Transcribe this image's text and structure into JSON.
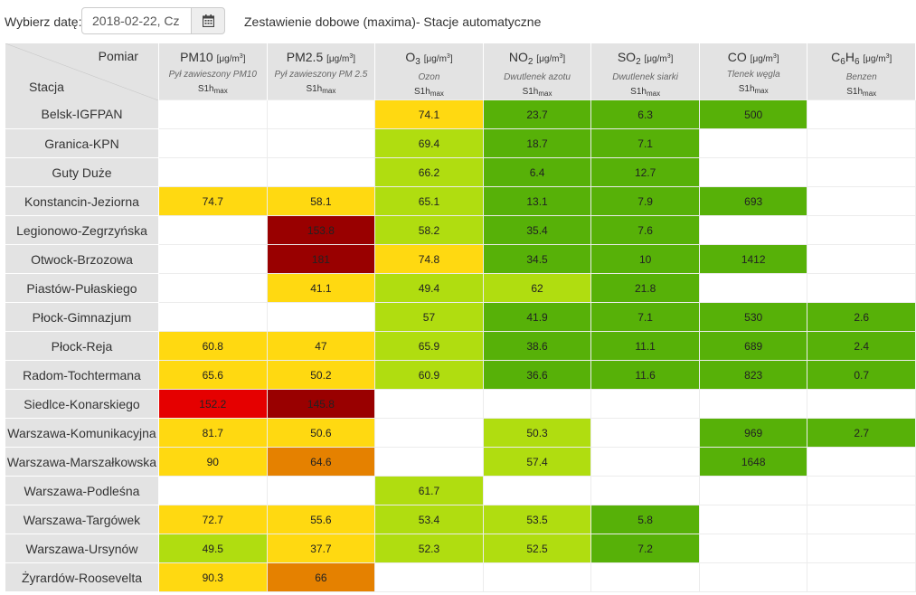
{
  "toolbar": {
    "date_label": "Wybierz datę:",
    "date_value": "2018-02-22, Cz",
    "calendar_icon": "calendar-icon",
    "title": "Zestawienie dobowe (maxima)- Stacje automatyczne"
  },
  "header": {
    "pomiar_label": "Pomiar",
    "stacja_label": "Stacja",
    "columns": [
      {
        "main": "PM10",
        "main_sub": "",
        "main_tail": "",
        "unit_prefix": "[μg/m",
        "unit_sup": "3",
        "unit_suffix": "]",
        "desc": "Pył zawieszony PM10",
        "param": "S1h",
        "param_sub": "max"
      },
      {
        "main": "PM2.5",
        "main_sub": "",
        "main_tail": "",
        "unit_prefix": "[μg/m",
        "unit_sup": "3",
        "unit_suffix": "]",
        "desc": "Pył zawieszony PM 2.5",
        "param": "S1h",
        "param_sub": "max"
      },
      {
        "main": "O",
        "main_sub": "3",
        "main_tail": "",
        "unit_prefix": "[μg/m",
        "unit_sup": "3",
        "unit_suffix": "]",
        "desc": "Ozon",
        "param": "S1h",
        "param_sub": "max"
      },
      {
        "main": "NO",
        "main_sub": "2",
        "main_tail": "",
        "unit_prefix": "[μg/m",
        "unit_sup": "3",
        "unit_suffix": "]",
        "desc": "Dwutlenek azotu",
        "param": "S1h",
        "param_sub": "max"
      },
      {
        "main": "SO",
        "main_sub": "2",
        "main_tail": "",
        "unit_prefix": "[μg/m",
        "unit_sup": "3",
        "unit_suffix": "]",
        "desc": "Dwutlenek siarki",
        "param": "S1h",
        "param_sub": "max"
      },
      {
        "main": "CO",
        "main_sub": "",
        "main_tail": "",
        "unit_prefix": "[μg/m",
        "unit_sup": "3",
        "unit_suffix": "]",
        "desc": "Tlenek węgla",
        "param": "S1h",
        "param_sub": "max"
      },
      {
        "main": "C",
        "main_sub": "6",
        "main_tail": "H",
        "main_tail_sub": "6",
        "unit_prefix": "[μg/m",
        "unit_sup": "3",
        "unit_suffix": "]",
        "desc": "Benzen",
        "param": "S1h",
        "param_sub": "max"
      }
    ]
  },
  "colors": {
    "very_good": "#57b108",
    "good": "#b0dd10",
    "moderate": "#ffd911",
    "sufficient": "#e58100",
    "bad": "#e50000",
    "very_bad": "#990000",
    "header_bg": "#e3e3e3"
  },
  "rows": [
    {
      "station": "Belsk-IGFPAN",
      "cells": [
        {
          "v": "",
          "c": "empty"
        },
        {
          "v": "",
          "c": "empty"
        },
        {
          "v": "74.1",
          "c": "moderate"
        },
        {
          "v": "23.7",
          "c": "very_good"
        },
        {
          "v": "6.3",
          "c": "very_good"
        },
        {
          "v": "500",
          "c": "very_good"
        },
        {
          "v": "",
          "c": "empty"
        }
      ]
    },
    {
      "station": "Granica-KPN",
      "cells": [
        {
          "v": "",
          "c": "empty"
        },
        {
          "v": "",
          "c": "empty"
        },
        {
          "v": "69.4",
          "c": "good"
        },
        {
          "v": "18.7",
          "c": "very_good"
        },
        {
          "v": "7.1",
          "c": "very_good"
        },
        {
          "v": "",
          "c": "empty"
        },
        {
          "v": "",
          "c": "empty"
        }
      ]
    },
    {
      "station": "Guty Duże",
      "cells": [
        {
          "v": "",
          "c": "empty"
        },
        {
          "v": "",
          "c": "empty"
        },
        {
          "v": "66.2",
          "c": "good"
        },
        {
          "v": "6.4",
          "c": "very_good"
        },
        {
          "v": "12.7",
          "c": "very_good"
        },
        {
          "v": "",
          "c": "empty"
        },
        {
          "v": "",
          "c": "empty"
        }
      ]
    },
    {
      "station": "Konstancin-Jeziorna",
      "cells": [
        {
          "v": "74.7",
          "c": "moderate"
        },
        {
          "v": "58.1",
          "c": "moderate"
        },
        {
          "v": "65.1",
          "c": "good"
        },
        {
          "v": "13.1",
          "c": "very_good"
        },
        {
          "v": "7.9",
          "c": "very_good"
        },
        {
          "v": "693",
          "c": "very_good"
        },
        {
          "v": "",
          "c": "empty"
        }
      ]
    },
    {
      "station": "Legionowo-Zegrzyńska",
      "cells": [
        {
          "v": "",
          "c": "empty"
        },
        {
          "v": "153.8",
          "c": "very_bad"
        },
        {
          "v": "58.2",
          "c": "good"
        },
        {
          "v": "35.4",
          "c": "very_good"
        },
        {
          "v": "7.6",
          "c": "very_good"
        },
        {
          "v": "",
          "c": "empty"
        },
        {
          "v": "",
          "c": "empty"
        }
      ]
    },
    {
      "station": "Otwock-Brzozowa",
      "cells": [
        {
          "v": "",
          "c": "empty"
        },
        {
          "v": "181",
          "c": "very_bad"
        },
        {
          "v": "74.8",
          "c": "moderate"
        },
        {
          "v": "34.5",
          "c": "very_good"
        },
        {
          "v": "10",
          "c": "very_good"
        },
        {
          "v": "1412",
          "c": "very_good"
        },
        {
          "v": "",
          "c": "empty"
        }
      ]
    },
    {
      "station": "Piastów-Pułaskiego",
      "cells": [
        {
          "v": "",
          "c": "empty"
        },
        {
          "v": "41.1",
          "c": "moderate"
        },
        {
          "v": "49.4",
          "c": "good"
        },
        {
          "v": "62",
          "c": "good"
        },
        {
          "v": "21.8",
          "c": "very_good"
        },
        {
          "v": "",
          "c": "empty"
        },
        {
          "v": "",
          "c": "empty"
        }
      ]
    },
    {
      "station": "Płock-Gimnazjum",
      "cells": [
        {
          "v": "",
          "c": "empty"
        },
        {
          "v": "",
          "c": "empty"
        },
        {
          "v": "57",
          "c": "good"
        },
        {
          "v": "41.9",
          "c": "very_good"
        },
        {
          "v": "7.1",
          "c": "very_good"
        },
        {
          "v": "530",
          "c": "very_good"
        },
        {
          "v": "2.6",
          "c": "very_good"
        }
      ]
    },
    {
      "station": "Płock-Reja",
      "cells": [
        {
          "v": "60.8",
          "c": "moderate"
        },
        {
          "v": "47",
          "c": "moderate"
        },
        {
          "v": "65.9",
          "c": "good"
        },
        {
          "v": "38.6",
          "c": "very_good"
        },
        {
          "v": "11.1",
          "c": "very_good"
        },
        {
          "v": "689",
          "c": "very_good"
        },
        {
          "v": "2.4",
          "c": "very_good"
        }
      ]
    },
    {
      "station": "Radom-Tochtermana",
      "cells": [
        {
          "v": "65.6",
          "c": "moderate"
        },
        {
          "v": "50.2",
          "c": "moderate"
        },
        {
          "v": "60.9",
          "c": "good"
        },
        {
          "v": "36.6",
          "c": "very_good"
        },
        {
          "v": "11.6",
          "c": "very_good"
        },
        {
          "v": "823",
          "c": "very_good"
        },
        {
          "v": "0.7",
          "c": "very_good"
        }
      ]
    },
    {
      "station": "Siedlce-Konarskiego",
      "cells": [
        {
          "v": "152.2",
          "c": "bad"
        },
        {
          "v": "145.8",
          "c": "very_bad"
        },
        {
          "v": "",
          "c": "empty"
        },
        {
          "v": "",
          "c": "empty"
        },
        {
          "v": "",
          "c": "empty"
        },
        {
          "v": "",
          "c": "empty"
        },
        {
          "v": "",
          "c": "empty"
        }
      ]
    },
    {
      "station": "Warszawa-Komunikacyjna",
      "cells": [
        {
          "v": "81.7",
          "c": "moderate"
        },
        {
          "v": "50.6",
          "c": "moderate"
        },
        {
          "v": "",
          "c": "empty"
        },
        {
          "v": "50.3",
          "c": "good"
        },
        {
          "v": "",
          "c": "empty"
        },
        {
          "v": "969",
          "c": "very_good"
        },
        {
          "v": "2.7",
          "c": "very_good"
        }
      ]
    },
    {
      "station": "Warszawa-Marszałkowska",
      "cells": [
        {
          "v": "90",
          "c": "moderate"
        },
        {
          "v": "64.6",
          "c": "sufficient"
        },
        {
          "v": "",
          "c": "empty"
        },
        {
          "v": "57.4",
          "c": "good"
        },
        {
          "v": "",
          "c": "empty"
        },
        {
          "v": "1648",
          "c": "very_good"
        },
        {
          "v": "",
          "c": "empty"
        }
      ]
    },
    {
      "station": "Warszawa-Podleśna",
      "cells": [
        {
          "v": "",
          "c": "empty"
        },
        {
          "v": "",
          "c": "empty"
        },
        {
          "v": "61.7",
          "c": "good"
        },
        {
          "v": "",
          "c": "empty"
        },
        {
          "v": "",
          "c": "empty"
        },
        {
          "v": "",
          "c": "empty"
        },
        {
          "v": "",
          "c": "empty"
        }
      ]
    },
    {
      "station": "Warszawa-Targówek",
      "cells": [
        {
          "v": "72.7",
          "c": "moderate"
        },
        {
          "v": "55.6",
          "c": "moderate"
        },
        {
          "v": "53.4",
          "c": "good"
        },
        {
          "v": "53.5",
          "c": "good"
        },
        {
          "v": "5.8",
          "c": "very_good"
        },
        {
          "v": "",
          "c": "empty"
        },
        {
          "v": "",
          "c": "empty"
        }
      ]
    },
    {
      "station": "Warszawa-Ursynów",
      "cells": [
        {
          "v": "49.5",
          "c": "good"
        },
        {
          "v": "37.7",
          "c": "moderate"
        },
        {
          "v": "52.3",
          "c": "good"
        },
        {
          "v": "52.5",
          "c": "good"
        },
        {
          "v": "7.2",
          "c": "very_good"
        },
        {
          "v": "",
          "c": "empty"
        },
        {
          "v": "",
          "c": "empty"
        }
      ]
    },
    {
      "station": "Żyrardów-Roosevelta",
      "cells": [
        {
          "v": "90.3",
          "c": "moderate"
        },
        {
          "v": "66",
          "c": "sufficient"
        },
        {
          "v": "",
          "c": "empty"
        },
        {
          "v": "",
          "c": "empty"
        },
        {
          "v": "",
          "c": "empty"
        },
        {
          "v": "",
          "c": "empty"
        },
        {
          "v": "",
          "c": "empty"
        }
      ]
    }
  ]
}
